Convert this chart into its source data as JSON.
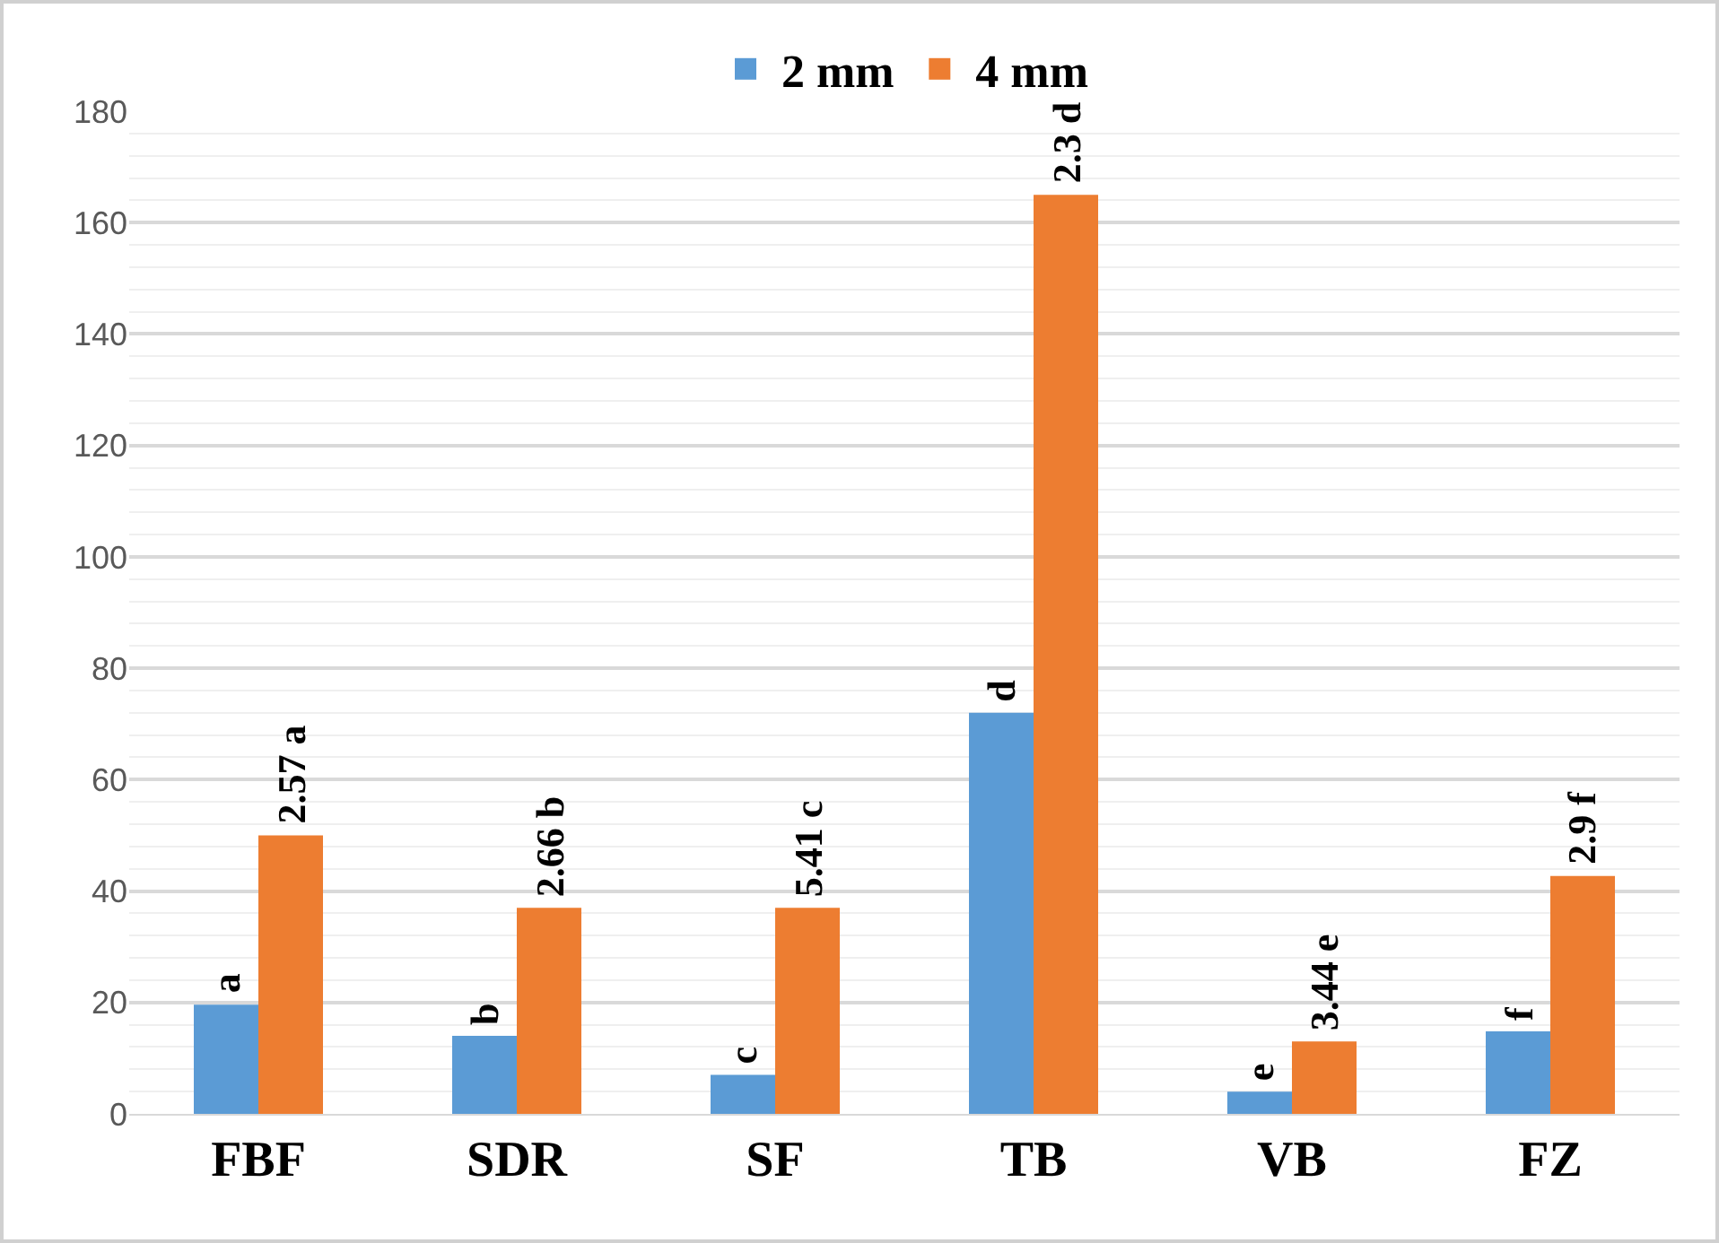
{
  "chart_data": {
    "type": "bar",
    "categories": [
      "FBF",
      "SDR",
      "SF",
      "TB",
      "VB",
      "FZ"
    ],
    "series": [
      {
        "name": "2 mm",
        "color": "#5b9bd5",
        "values": [
          19.6,
          14,
          7,
          72,
          4,
          14.8
        ]
      },
      {
        "name": "4 mm",
        "color": "#ed7d31",
        "values": [
          50,
          37,
          37,
          165,
          13,
          42.7
        ]
      }
    ],
    "annotations": [
      {
        "text": "a",
        "x": "FBF",
        "y": 19.6
      },
      {
        "text": "2.57 a",
        "x": "FBF",
        "y": 50
      },
      {
        "text": "b",
        "x": "SDR",
        "y": 14
      },
      {
        "text": "2.66 b",
        "x": "SDR",
        "y": 37
      },
      {
        "text": "c",
        "x": "SF",
        "y": 7
      },
      {
        "text": "5.41 c",
        "x": "SF",
        "y": 37
      },
      {
        "text": "d",
        "x": "TB",
        "y": 72
      },
      {
        "text": "2.3 d",
        "x": "TB",
        "y": 165
      },
      {
        "text": "e",
        "x": "VB",
        "y": 4
      },
      {
        "text": "3.44 e",
        "x": "VB",
        "y": 13
      },
      {
        "text": "f",
        "x": "FZ",
        "y": 14.8
      },
      {
        "text": "2.9 f",
        "x": "FZ",
        "y": 42.7
      }
    ],
    "ylim": [
      0,
      180
    ],
    "yticks": [
      0,
      20,
      40,
      60,
      80,
      100,
      120,
      140,
      160,
      180
    ],
    "grid": "y",
    "legend": "top"
  }
}
